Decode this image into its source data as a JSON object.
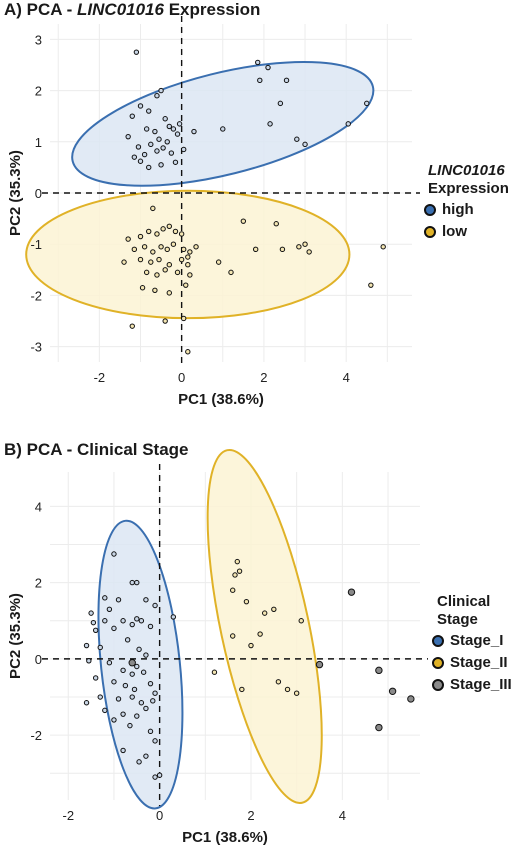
{
  "panels": [
    {
      "title_prefix": "A) PCA - ",
      "title_italic": "LINC01016",
      "title_suffix": " Expression",
      "legend_title_line1": "LINC01016",
      "legend_title_line2": "Expression",
      "legend_items": [
        "high",
        "low"
      ]
    },
    {
      "title_prefix": "B) PCA - Clinical Stage",
      "title_italic": "",
      "title_suffix": "",
      "legend_title_line1": "Clinical",
      "legend_title_line2": "Stage",
      "legend_items": [
        "Stage_I",
        "Stage_II",
        "Stage_III"
      ]
    }
  ],
  "colors": {
    "blue": "#3a6fb0",
    "blue_fill": "#dce6f3",
    "yellow": "#e0b227",
    "yellow_fill": "#fbf3d4",
    "gray": "#8a8a8a",
    "point_default": "#c9d6e6",
    "point_edge": "#111111"
  },
  "chart_data": [
    {
      "type": "scatter",
      "title": "A) PCA - LINC01016 Expression",
      "xlabel": "PC1 (38.6%)",
      "ylabel": "PC2 (35.3%)",
      "xlim": [
        -3.2,
        5.6
      ],
      "ylim": [
        -3.3,
        3.3
      ],
      "xticks": [
        -2,
        0,
        2,
        4
      ],
      "yticks": [
        3,
        2,
        1,
        0,
        -1,
        -2,
        -3
      ],
      "grid": true,
      "legend_position": "right",
      "ellipses": [
        {
          "group": "high",
          "color": "blue",
          "cx": 1.0,
          "cy": 1.35,
          "rx": 3.35,
          "ry": 1.1,
          "angle": 14
        },
        {
          "group": "low",
          "color": "yellow",
          "cx": 0.15,
          "cy": -1.2,
          "rx": 3.5,
          "ry": 1.38,
          "angle": 0
        }
      ],
      "series": [
        {
          "name": "high",
          "color": "blue",
          "points": [
            [
              -1.1,
              2.75
            ],
            [
              -0.6,
              1.9
            ],
            [
              -0.5,
              2.0
            ],
            [
              -1.0,
              1.7
            ],
            [
              -0.8,
              1.6
            ],
            [
              -1.2,
              1.5
            ],
            [
              -0.4,
              1.45
            ],
            [
              -0.3,
              1.3
            ],
            [
              -0.85,
              1.25
            ],
            [
              -0.65,
              1.2
            ],
            [
              -1.3,
              1.1
            ],
            [
              -0.2,
              1.25
            ],
            [
              -0.1,
              1.15
            ],
            [
              -0.55,
              1.05
            ],
            [
              -0.35,
              1.0
            ],
            [
              -0.75,
              0.95
            ],
            [
              -1.05,
              0.9
            ],
            [
              -0.45,
              0.88
            ],
            [
              -0.6,
              0.82
            ],
            [
              -0.25,
              0.78
            ],
            [
              -0.9,
              0.75
            ],
            [
              -1.15,
              0.7
            ],
            [
              -1.0,
              0.62
            ],
            [
              -0.5,
              0.55
            ],
            [
              -0.8,
              0.5
            ],
            [
              -0.15,
              0.6
            ],
            [
              0.3,
              1.2
            ],
            [
              1.0,
              1.25
            ],
            [
              1.85,
              2.55
            ],
            [
              1.9,
              2.2
            ],
            [
              2.55,
              2.2
            ],
            [
              2.4,
              1.75
            ],
            [
              2.15,
              1.35
            ],
            [
              2.8,
              1.05
            ],
            [
              3.0,
              0.95
            ],
            [
              4.05,
              1.35
            ],
            [
              4.5,
              1.75
            ],
            [
              2.1,
              2.45
            ],
            [
              -0.05,
              1.35
            ],
            [
              0.05,
              0.85
            ]
          ]
        },
        {
          "name": "low",
          "color": "yellow",
          "points": [
            [
              -0.7,
              -0.3
            ],
            [
              -1.3,
              -0.9
            ],
            [
              -1.0,
              -0.85
            ],
            [
              -0.8,
              -0.75
            ],
            [
              -0.6,
              -0.8
            ],
            [
              -0.45,
              -0.7
            ],
            [
              -0.3,
              -0.65
            ],
            [
              -0.15,
              -0.75
            ],
            [
              0.0,
              -0.8
            ],
            [
              -1.15,
              -1.1
            ],
            [
              -0.9,
              -1.05
            ],
            [
              -0.7,
              -1.15
            ],
            [
              -0.5,
              -1.05
            ],
            [
              -0.35,
              -1.1
            ],
            [
              -0.2,
              -1.0
            ],
            [
              0.05,
              -1.1
            ],
            [
              0.2,
              -1.15
            ],
            [
              0.35,
              -1.05
            ],
            [
              -1.0,
              -1.3
            ],
            [
              -0.75,
              -1.35
            ],
            [
              -0.55,
              -1.3
            ],
            [
              -0.3,
              -1.4
            ],
            [
              0.0,
              -1.3
            ],
            [
              0.15,
              -1.4
            ],
            [
              -0.85,
              -1.55
            ],
            [
              -0.6,
              -1.6
            ],
            [
              -0.4,
              -1.5
            ],
            [
              -0.1,
              -1.55
            ],
            [
              0.2,
              -1.6
            ],
            [
              0.15,
              -1.25
            ],
            [
              -1.2,
              -2.6
            ],
            [
              -0.4,
              -2.5
            ],
            [
              0.05,
              -2.45
            ],
            [
              0.15,
              -3.1
            ],
            [
              1.5,
              -0.55
            ],
            [
              2.3,
              -0.6
            ],
            [
              2.45,
              -1.1
            ],
            [
              2.85,
              -1.05
            ],
            [
              3.0,
              -1.0
            ],
            [
              3.1,
              -1.15
            ],
            [
              4.9,
              -1.05
            ],
            [
              4.6,
              -1.8
            ],
            [
              0.9,
              -1.35
            ],
            [
              1.2,
              -1.55
            ],
            [
              1.8,
              -1.1
            ],
            [
              -1.4,
              -1.35
            ],
            [
              -0.95,
              -1.85
            ],
            [
              -0.65,
              -1.9
            ],
            [
              -0.3,
              -1.95
            ],
            [
              0.1,
              -1.8
            ]
          ]
        }
      ]
    },
    {
      "type": "scatter",
      "title": "B) PCA - Clinical Stage",
      "xlabel": "PC1 (38.6%)",
      "ylabel": "PC2 (35.3%)",
      "xlim": [
        -2.4,
        5.7
      ],
      "ylim": [
        -3.7,
        4.9
      ],
      "xticks": [
        -2,
        0,
        2,
        4
      ],
      "yticks": [
        4,
        2,
        0,
        -2
      ],
      "grid": true,
      "legend_position": "right",
      "ellipses": [
        {
          "group": "Stage_I",
          "color": "blue",
          "cx": -0.42,
          "cy": -0.15,
          "rx": 3.45,
          "ry": 0.94,
          "angle": 96
        },
        {
          "group": "Stage_II",
          "color": "yellow",
          "cx": 2.3,
          "cy": 0.85,
          "rx": 4.3,
          "ry": 1.05,
          "angle": 102
        }
      ],
      "series": [
        {
          "name": "Stage_I",
          "color": "blue",
          "points": [
            [
              -1.0,
              2.75
            ],
            [
              -0.6,
              2.0
            ],
            [
              -0.5,
              2.0
            ],
            [
              -1.2,
              1.6
            ],
            [
              -0.9,
              1.55
            ],
            [
              -0.3,
              1.55
            ],
            [
              -1.5,
              1.2
            ],
            [
              -1.2,
              1.0
            ],
            [
              -0.8,
              1.0
            ],
            [
              -0.5,
              1.05
            ],
            [
              -0.4,
              1.0
            ],
            [
              -0.6,
              0.9
            ],
            [
              -1.0,
              0.8
            ],
            [
              -1.4,
              0.75
            ],
            [
              -0.2,
              0.85
            ],
            [
              -1.45,
              0.95
            ],
            [
              -1.1,
              1.3
            ],
            [
              -0.1,
              1.4
            ],
            [
              -0.7,
              0.5
            ],
            [
              -1.6,
              0.35
            ],
            [
              -1.3,
              0.3
            ],
            [
              -0.45,
              0.25
            ],
            [
              -0.3,
              0.1
            ],
            [
              -1.1,
              -0.1
            ],
            [
              -0.8,
              -0.3
            ],
            [
              -0.5,
              -0.2
            ],
            [
              -0.35,
              -0.35
            ],
            [
              -0.6,
              -0.4
            ],
            [
              -1.4,
              -0.5
            ],
            [
              -1.0,
              -0.6
            ],
            [
              -0.75,
              -0.7
            ],
            [
              -0.55,
              -0.8
            ],
            [
              -0.2,
              -0.65
            ],
            [
              -0.1,
              -0.9
            ],
            [
              -1.3,
              -1.0
            ],
            [
              -0.9,
              -1.05
            ],
            [
              -0.6,
              -1.0
            ],
            [
              -0.4,
              -1.15
            ],
            [
              -0.15,
              -1.1
            ],
            [
              -1.6,
              -1.15
            ],
            [
              -1.2,
              -1.35
            ],
            [
              -0.8,
              -1.45
            ],
            [
              -0.5,
              -1.5
            ],
            [
              -0.3,
              -1.3
            ],
            [
              -1.0,
              -1.6
            ],
            [
              -0.65,
              -1.75
            ],
            [
              -0.2,
              -1.9
            ],
            [
              -0.8,
              -2.4
            ],
            [
              -0.1,
              -2.15
            ],
            [
              -0.3,
              -2.55
            ],
            [
              -0.45,
              -2.7
            ],
            [
              -0.1,
              -3.1
            ],
            [
              0.0,
              -3.05
            ],
            [
              0.3,
              1.1
            ],
            [
              -1.55,
              -0.05
            ]
          ]
        },
        {
          "name": "Stage_II",
          "color": "yellow",
          "points": [
            [
              1.7,
              2.55
            ],
            [
              1.75,
              2.3
            ],
            [
              1.65,
              2.2
            ],
            [
              1.6,
              1.8
            ],
            [
              1.9,
              1.5
            ],
            [
              2.5,
              1.3
            ],
            [
              3.1,
              1.0
            ],
            [
              2.3,
              1.2
            ],
            [
              1.6,
              0.6
            ],
            [
              2.0,
              0.35
            ],
            [
              1.2,
              -0.35
            ],
            [
              1.8,
              -0.8
            ],
            [
              2.8,
              -0.8
            ],
            [
              3.0,
              -0.9
            ],
            [
              2.6,
              -0.6
            ],
            [
              2.2,
              0.65
            ]
          ]
        },
        {
          "name": "Stage_III",
          "color": "gray",
          "points": [
            [
              4.2,
              1.75
            ],
            [
              4.8,
              -0.3
            ],
            [
              5.1,
              -0.85
            ],
            [
              5.5,
              -1.05
            ],
            [
              4.8,
              -1.8
            ],
            [
              3.5,
              -0.15
            ],
            [
              -0.6,
              -0.1
            ]
          ]
        }
      ]
    }
  ]
}
